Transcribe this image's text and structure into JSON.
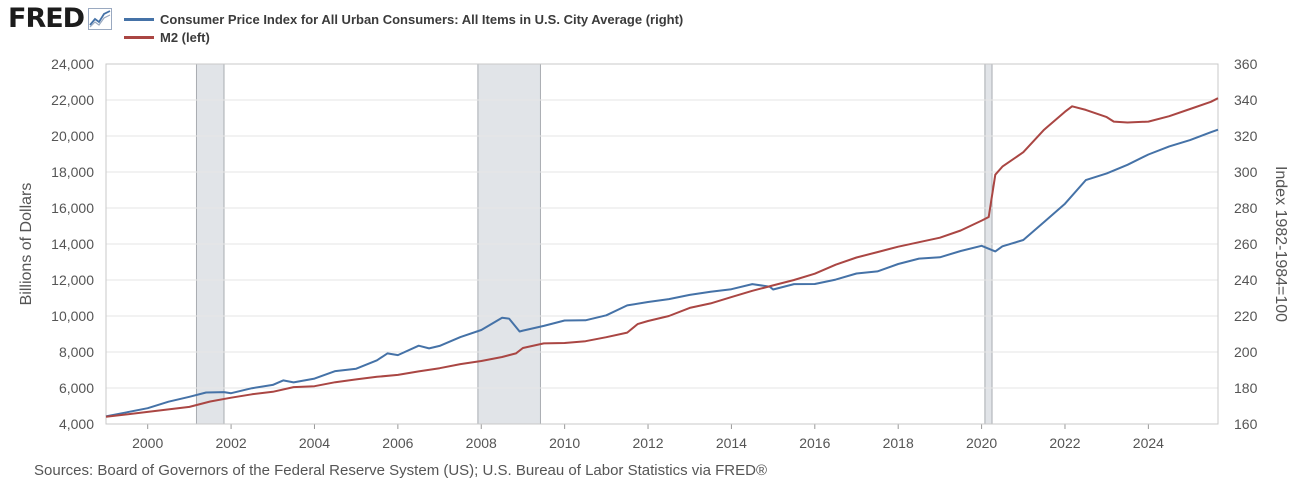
{
  "brand": {
    "name": "FRED",
    "icon": "trend-line-icon"
  },
  "chart_data": {
    "type": "line",
    "x_range": [
      1999.0,
      2025.67
    ],
    "x_ticks": [
      2000,
      2002,
      2004,
      2006,
      2008,
      2010,
      2012,
      2014,
      2016,
      2018,
      2020,
      2022,
      2024
    ],
    "left_axis": {
      "label": "Billions of Dollars",
      "range": [
        4000,
        24000
      ],
      "ticks": [
        "4,000",
        "6,000",
        "8,000",
        "10,000",
        "12,000",
        "14,000",
        "16,000",
        "18,000",
        "20,000",
        "22,000",
        "24,000"
      ]
    },
    "right_axis": {
      "label": "Index 1982-1984=100",
      "range": [
        160,
        360
      ],
      "ticks": [
        "160",
        "180",
        "200",
        "220",
        "240",
        "260",
        "280",
        "300",
        "320",
        "340",
        "360"
      ]
    },
    "recessions": [
      [
        2001.17,
        2001.83
      ],
      [
        2007.92,
        2009.42
      ],
      [
        2020.08,
        2020.25
      ]
    ],
    "grid": "horizontal",
    "series": [
      {
        "name": "Consumer Price Index for All Urban Consumers: All Items in U.S. City Average (right)",
        "axis": "right",
        "color": "#4572a7",
        "points": [
          [
            1999.0,
            164.3
          ],
          [
            1999.5,
            166.5
          ],
          [
            2000.0,
            168.8
          ],
          [
            2000.5,
            172.4
          ],
          [
            2001.0,
            175.1
          ],
          [
            2001.4,
            177.5
          ],
          [
            2001.83,
            177.7
          ],
          [
            2002.0,
            177.1
          ],
          [
            2002.5,
            179.9
          ],
          [
            2003.0,
            181.7
          ],
          [
            2003.25,
            184.2
          ],
          [
            2003.5,
            183.1
          ],
          [
            2004.0,
            185.2
          ],
          [
            2004.5,
            189.4
          ],
          [
            2005.0,
            190.7
          ],
          [
            2005.5,
            195.4
          ],
          [
            2005.75,
            199.2
          ],
          [
            2006.0,
            198.3
          ],
          [
            2006.5,
            203.5
          ],
          [
            2006.75,
            202.0
          ],
          [
            2007.0,
            203.4
          ],
          [
            2007.5,
            208.3
          ],
          [
            2008.0,
            212.2
          ],
          [
            2008.5,
            219.0
          ],
          [
            2008.67,
            218.5
          ],
          [
            2008.92,
            211.4
          ],
          [
            2009.0,
            211.9
          ],
          [
            2009.5,
            214.5
          ],
          [
            2010.0,
            217.5
          ],
          [
            2010.5,
            217.6
          ],
          [
            2011.0,
            220.4
          ],
          [
            2011.5,
            225.9
          ],
          [
            2012.0,
            227.8
          ],
          [
            2012.5,
            229.4
          ],
          [
            2013.0,
            231.7
          ],
          [
            2013.5,
            233.5
          ],
          [
            2014.0,
            234.9
          ],
          [
            2014.5,
            237.7
          ],
          [
            2014.92,
            236.3
          ],
          [
            2015.0,
            234.7
          ],
          [
            2015.5,
            237.7
          ],
          [
            2016.0,
            237.8
          ],
          [
            2016.5,
            240.2
          ],
          [
            2017.0,
            243.6
          ],
          [
            2017.5,
            244.8
          ],
          [
            2018.0,
            248.9
          ],
          [
            2018.5,
            251.9
          ],
          [
            2019.0,
            252.6
          ],
          [
            2019.5,
            256.1
          ],
          [
            2020.0,
            259.0
          ],
          [
            2020.33,
            255.9
          ],
          [
            2020.5,
            258.7
          ],
          [
            2021.0,
            262.2
          ],
          [
            2021.5,
            272.2
          ],
          [
            2022.0,
            282.4
          ],
          [
            2022.5,
            295.5
          ],
          [
            2023.0,
            299.2
          ],
          [
            2023.5,
            304.0
          ],
          [
            2024.0,
            309.7
          ],
          [
            2024.5,
            314.2
          ],
          [
            2025.0,
            317.7
          ],
          [
            2025.5,
            322.1
          ],
          [
            2025.67,
            323.5
          ]
        ]
      },
      {
        "name": "M2 (left)",
        "axis": "left",
        "color": "#aa4643",
        "points": [
          [
            1999.0,
            4400
          ],
          [
            2000.0,
            4670
          ],
          [
            2001.0,
            4950
          ],
          [
            2001.5,
            5250
          ],
          [
            2002.0,
            5460
          ],
          [
            2002.5,
            5650
          ],
          [
            2003.0,
            5790
          ],
          [
            2003.5,
            6050
          ],
          [
            2004.0,
            6100
          ],
          [
            2004.5,
            6320
          ],
          [
            2005.0,
            6480
          ],
          [
            2005.5,
            6620
          ],
          [
            2006.0,
            6730
          ],
          [
            2006.5,
            6920
          ],
          [
            2007.0,
            7100
          ],
          [
            2007.5,
            7330
          ],
          [
            2008.0,
            7500
          ],
          [
            2008.5,
            7720
          ],
          [
            2008.83,
            7920
          ],
          [
            2009.0,
            8220
          ],
          [
            2009.5,
            8480
          ],
          [
            2010.0,
            8500
          ],
          [
            2010.5,
            8600
          ],
          [
            2011.0,
            8820
          ],
          [
            2011.5,
            9080
          ],
          [
            2011.75,
            9550
          ],
          [
            2012.0,
            9720
          ],
          [
            2012.5,
            10000
          ],
          [
            2013.0,
            10450
          ],
          [
            2013.5,
            10700
          ],
          [
            2014.0,
            11050
          ],
          [
            2014.5,
            11400
          ],
          [
            2015.0,
            11700
          ],
          [
            2015.5,
            12000
          ],
          [
            2016.0,
            12350
          ],
          [
            2016.5,
            12850
          ],
          [
            2017.0,
            13250
          ],
          [
            2017.5,
            13550
          ],
          [
            2018.0,
            13850
          ],
          [
            2018.5,
            14100
          ],
          [
            2019.0,
            14350
          ],
          [
            2019.5,
            14750
          ],
          [
            2020.0,
            15300
          ],
          [
            2020.17,
            15500
          ],
          [
            2020.33,
            17850
          ],
          [
            2020.5,
            18300
          ],
          [
            2021.0,
            19100
          ],
          [
            2021.5,
            20350
          ],
          [
            2022.0,
            21350
          ],
          [
            2022.17,
            21650
          ],
          [
            2022.5,
            21450
          ],
          [
            2023.0,
            21050
          ],
          [
            2023.17,
            20800
          ],
          [
            2023.5,
            20750
          ],
          [
            2024.0,
            20800
          ],
          [
            2024.5,
            21100
          ],
          [
            2025.0,
            21500
          ],
          [
            2025.5,
            21900
          ],
          [
            2025.67,
            22100
          ]
        ]
      }
    ]
  },
  "footer": {
    "sources": "Sources: Board of Governors of the Federal Reserve System (US); U.S. Bureau of Labor Statistics via FRED®"
  }
}
